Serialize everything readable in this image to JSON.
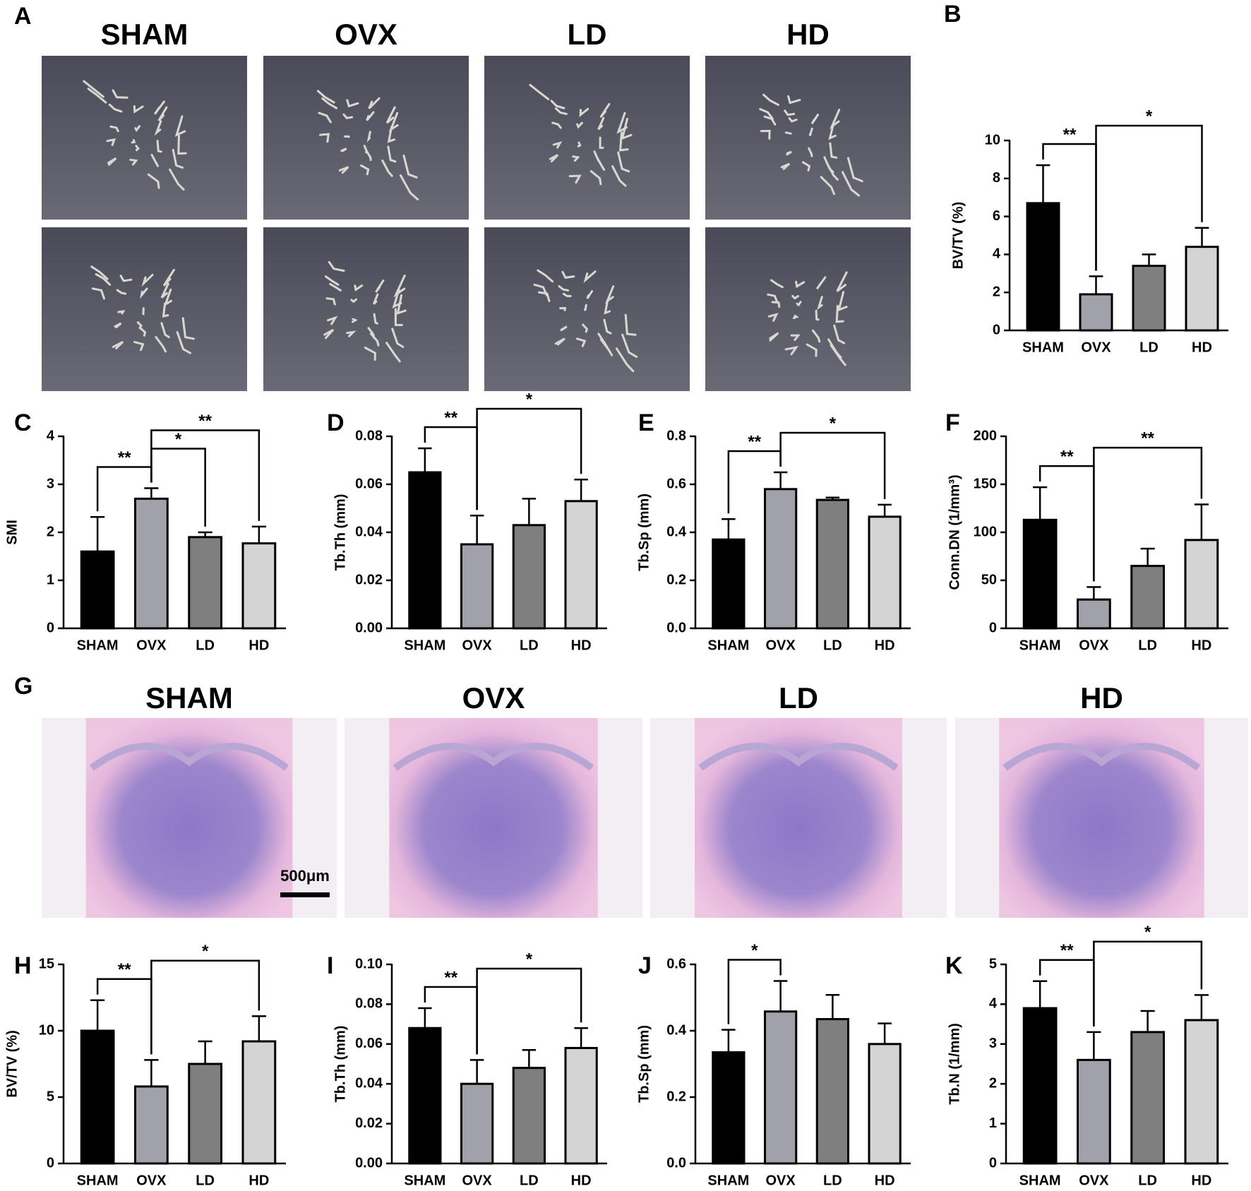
{
  "image_panels": [
    {
      "panel": "A",
      "columns": [
        "SHAM",
        "OVX",
        "LD",
        "HD"
      ]
    },
    {
      "panel": "G",
      "columns": [
        "SHAM",
        "OVX",
        "LD",
        "HD"
      ],
      "scale_bar": "500μm"
    }
  ],
  "chart_data": [
    {
      "type": "bar",
      "panel": "B",
      "ylabel": "BV/TV (%)",
      "categories": [
        "SHAM",
        "OVX",
        "LD",
        "HD"
      ],
      "values": [
        6.7,
        1.9,
        3.4,
        4.4
      ],
      "errors": [
        2.0,
        0.95,
        0.6,
        1.0
      ],
      "colors": [
        "#000000",
        "#a0a1a9",
        "#7f7f7f",
        "#d4d4d4"
      ],
      "ylim": [
        0,
        10
      ],
      "yticks": [
        0,
        2,
        4,
        6,
        8,
        10
      ],
      "annotations": [
        {
          "from": 0,
          "to": 1,
          "label": "**"
        },
        {
          "from": 1,
          "to": 3,
          "label": "*"
        }
      ]
    },
    {
      "type": "bar",
      "panel": "C",
      "ylabel": "SMI",
      "categories": [
        "SHAM",
        "OVX",
        "LD",
        "HD"
      ],
      "values": [
        1.6,
        2.7,
        1.9,
        1.77
      ],
      "errors": [
        0.72,
        0.22,
        0.1,
        0.35
      ],
      "colors": [
        "#000000",
        "#a0a1a9",
        "#7f7f7f",
        "#d4d4d4"
      ],
      "ylim": [
        0,
        4
      ],
      "yticks": [
        0,
        1,
        2,
        3,
        4
      ],
      "annotations": [
        {
          "from": 0,
          "to": 1,
          "label": "**"
        },
        {
          "from": 1,
          "to": 2,
          "label": "*"
        },
        {
          "from": 1,
          "to": 3,
          "label": "**"
        }
      ]
    },
    {
      "type": "bar",
      "panel": "D",
      "ylabel": "Tb.Th (mm)",
      "categories": [
        "SHAM",
        "OVX",
        "LD",
        "HD"
      ],
      "values": [
        0.065,
        0.035,
        0.043,
        0.053
      ],
      "errors": [
        0.01,
        0.012,
        0.011,
        0.009
      ],
      "colors": [
        "#000000",
        "#a0a1a9",
        "#7f7f7f",
        "#d4d4d4"
      ],
      "ylim": [
        0,
        0.08
      ],
      "yticks": [
        {
          "value": 0,
          "label": "0.00"
        },
        {
          "value": 0.02,
          "label": "0.02"
        },
        {
          "value": 0.04,
          "label": "0.04"
        },
        {
          "value": 0.06,
          "label": "0.06"
        },
        {
          "value": 0.08,
          "label": "0.08"
        }
      ],
      "annotations": [
        {
          "from": 0,
          "to": 1,
          "label": "**"
        },
        {
          "from": 1,
          "to": 3,
          "label": "*"
        }
      ]
    },
    {
      "type": "bar",
      "panel": "E",
      "ylabel": "Tb.Sp (mm)",
      "categories": [
        "SHAM",
        "OVX",
        "LD",
        "HD"
      ],
      "values": [
        0.37,
        0.58,
        0.535,
        0.465
      ],
      "errors": [
        0.085,
        0.07,
        0.01,
        0.05
      ],
      "colors": [
        "#000000",
        "#a0a1a9",
        "#7f7f7f",
        "#d4d4d4"
      ],
      "ylim": [
        0,
        0.8
      ],
      "yticks": [
        {
          "value": 0,
          "label": "0.0"
        },
        0.2,
        0.4,
        0.6,
        0.8
      ],
      "annotations": [
        {
          "from": 0,
          "to": 1,
          "label": "**"
        },
        {
          "from": 1,
          "to": 3,
          "label": "*"
        }
      ]
    },
    {
      "type": "bar",
      "panel": "F",
      "ylabel": "Conn.DN (1/mm³)",
      "categories": [
        "SHAM",
        "OVX",
        "LD",
        "HD"
      ],
      "values": [
        113,
        30,
        65,
        92
      ],
      "errors": [
        34,
        13,
        18,
        37
      ],
      "colors": [
        "#000000",
        "#a0a1a9",
        "#7f7f7f",
        "#d4d4d4"
      ],
      "ylim": [
        0,
        200
      ],
      "yticks": [
        0,
        50,
        100,
        150,
        200
      ],
      "annotations": [
        {
          "from": 0,
          "to": 1,
          "label": "**"
        },
        {
          "from": 1,
          "to": 3,
          "label": "**"
        }
      ]
    },
    {
      "type": "bar",
      "panel": "H",
      "ylabel": "BV/TV (%)",
      "categories": [
        "SHAM",
        "OVX",
        "LD",
        "HD"
      ],
      "values": [
        10.0,
        5.8,
        7.5,
        9.2
      ],
      "errors": [
        2.3,
        2.0,
        1.7,
        1.9
      ],
      "colors": [
        "#000000",
        "#a0a1a9",
        "#7f7f7f",
        "#d4d4d4"
      ],
      "ylim": [
        0,
        15
      ],
      "yticks": [
        0,
        5,
        10,
        15
      ],
      "annotations": [
        {
          "from": 0,
          "to": 1,
          "label": "**"
        },
        {
          "from": 1,
          "to": 3,
          "label": "*"
        }
      ]
    },
    {
      "type": "bar",
      "panel": "I",
      "ylabel": "Tb.Th (mm)",
      "categories": [
        "SHAM",
        "OVX",
        "LD",
        "HD"
      ],
      "values": [
        0.068,
        0.04,
        0.048,
        0.058
      ],
      "errors": [
        0.01,
        0.012,
        0.009,
        0.01
      ],
      "colors": [
        "#000000",
        "#a0a1a9",
        "#7f7f7f",
        "#d4d4d4"
      ],
      "ylim": [
        0,
        0.1
      ],
      "yticks": [
        {
          "value": 0,
          "label": "0.00"
        },
        {
          "value": 0.02,
          "label": "0.02"
        },
        {
          "value": 0.04,
          "label": "0.04"
        },
        {
          "value": 0.06,
          "label": "0.06"
        },
        {
          "value": 0.08,
          "label": "0.08"
        },
        {
          "value": 0.1,
          "label": "0.10"
        }
      ],
      "annotations": [
        {
          "from": 0,
          "to": 1,
          "label": "**"
        },
        {
          "from": 1,
          "to": 3,
          "label": "*"
        }
      ]
    },
    {
      "type": "bar",
      "panel": "J",
      "ylabel": "Tb.Sp (mm)",
      "categories": [
        "SHAM",
        "OVX",
        "LD",
        "HD"
      ],
      "values": [
        0.335,
        0.458,
        0.435,
        0.36
      ],
      "errors": [
        0.068,
        0.092,
        0.073,
        0.062
      ],
      "colors": [
        "#000000",
        "#a0a1a9",
        "#7f7f7f",
        "#d4d4d4"
      ],
      "ylim": [
        0,
        0.6
      ],
      "yticks": [
        {
          "value": 0,
          "label": "0.0"
        },
        0.2,
        0.4,
        0.6
      ],
      "annotations": [
        {
          "from": 0,
          "to": 1,
          "label": "*"
        }
      ]
    },
    {
      "type": "bar",
      "panel": "K",
      "ylabel": "Tb.N (1/mm)",
      "categories": [
        "SHAM",
        "OVX",
        "LD",
        "HD"
      ],
      "values": [
        3.9,
        2.6,
        3.3,
        3.6
      ],
      "errors": [
        0.68,
        0.7,
        0.53,
        0.63
      ],
      "colors": [
        "#000000",
        "#a0a1a9",
        "#7f7f7f",
        "#d4d4d4"
      ],
      "ylim": [
        0,
        5
      ],
      "yticks": [
        0,
        1,
        2,
        3,
        4,
        5
      ],
      "annotations": [
        {
          "from": 0,
          "to": 1,
          "label": "**"
        },
        {
          "from": 1,
          "to": 3,
          "label": "*"
        }
      ]
    }
  ]
}
